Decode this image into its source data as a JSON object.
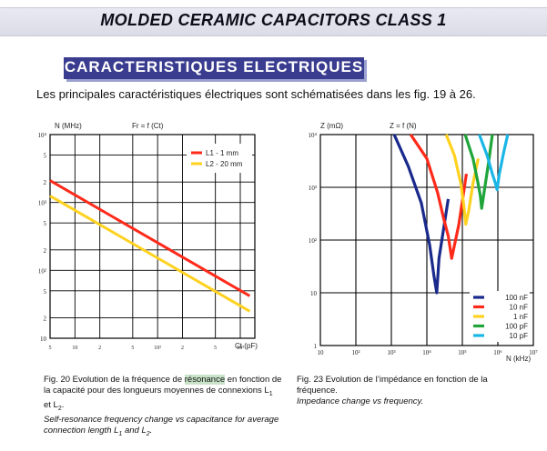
{
  "header": {
    "title": "MOLDED CERAMIC CAPACITORS CLASS 1"
  },
  "section": {
    "title": "CARACTERISTIQUES ELECTRIQUES"
  },
  "intro": "Les principales caractéristiques électriques sont schématisées dans les fig. 19 à 26.",
  "colors": {
    "section_bar": "#3a3d8f",
    "red": "#ff2a1a",
    "yellow": "#ffd21f",
    "navy": "#1a2a8c",
    "green": "#1fa53a",
    "cyan": "#1ab6e6"
  },
  "fig20": {
    "ylabel": "N (MHz)",
    "formula": "Fr = f (Ct)",
    "xlabel": "Ct (pF)",
    "caption_fr_a": "Fig. 20  Evolution de la fréquence de ",
    "caption_fr_hl": "résonance",
    "caption_fr_b": " en fonction de la capacité pour des longueurs moyennes de connexions L",
    "caption_fr_c": " et L",
    "caption_en_a": "Self-resonance frequency change vs capacitance for average connection length L",
    "caption_en_b": " and L",
    "sub1": "1",
    "sub2": "2",
    "dot": ".",
    "chart_data": {
      "type": "line",
      "x_scale": "log",
      "y_scale": "log",
      "xlim": [
        5,
        1500
      ],
      "ylim": [
        10,
        10000
      ],
      "x_ticks": [
        "5",
        "10",
        "2",
        "5",
        "10²",
        "2",
        "5",
        "10³"
      ],
      "y_ticks": [
        "10⁴",
        "5",
        "2",
        "10³",
        "5",
        "2",
        "10²",
        "5",
        "2",
        "10"
      ],
      "series": [
        {
          "name": "L1 -  1 mm",
          "color": "#ff2a1a",
          "x": [
            5,
            1300
          ],
          "y": [
            2100,
            42
          ]
        },
        {
          "name": "L2 - 20 mm",
          "color": "#ffd21f",
          "x": [
            5,
            1300
          ],
          "y": [
            1250,
            25
          ]
        }
      ]
    }
  },
  "fig23": {
    "ylabel": "Z (mΩ)",
    "formula": "Z = f (N)",
    "xlabel": "N (kHz)",
    "caption_fr": "Fig. 23  Evolution de l’impédance en fonction de la fréquence.",
    "caption_en": "Impedance change vs frequency.",
    "chart_data": {
      "type": "line",
      "x_scale": "log",
      "y_scale": "log",
      "xlim": [
        10,
        10000000
      ],
      "ylim": [
        1,
        10000
      ],
      "x_ticks": [
        "10",
        "10²",
        "10³",
        "10⁴",
        "10⁵",
        "10⁶",
        "10⁷"
      ],
      "y_ticks": [
        "10⁴",
        "10³",
        "10²",
        "10",
        "1"
      ],
      "legend_placement": "bottom-right",
      "series": [
        {
          "name": "100 nF",
          "color": "#1a2a8c",
          "x": [
            1200,
            3000,
            7000,
            12000,
            16000,
            19000,
            22000,
            40000
          ],
          "y": [
            10000,
            2500,
            500,
            80,
            20,
            10,
            45,
            600
          ]
        },
        {
          "name": "10 nF",
          "color": "#ff2a1a",
          "x": [
            3500,
            10000,
            20000,
            30000,
            40000,
            50000,
            80000,
            130000
          ],
          "y": [
            10000,
            3500,
            800,
            250,
            120,
            45,
            200,
            1800
          ]
        },
        {
          "name": "1 nF",
          "color": "#ffd21f",
          "x": [
            35000,
            60000,
            90000,
            110000,
            125000,
            150000,
            200000,
            280000
          ],
          "y": [
            10000,
            4000,
            1200,
            450,
            200,
            350,
            1200,
            3500
          ]
        },
        {
          "name": "100 pF",
          "color": "#1fa53a",
          "x": [
            120000,
            200000,
            270000,
            320000,
            350000,
            420000,
            550000,
            700000
          ],
          "y": [
            10000,
            3500,
            1300,
            700,
            400,
            900,
            3000,
            10000
          ]
        },
        {
          "name": "10 pF",
          "color": "#1ab6e6",
          "x": [
            300000,
            500000,
            700000,
            850000,
            950000,
            1100000,
            1500000,
            1900000
          ],
          "y": [
            10000,
            4000,
            1800,
            1200,
            900,
            1800,
            5000,
            10000
          ]
        }
      ]
    }
  }
}
